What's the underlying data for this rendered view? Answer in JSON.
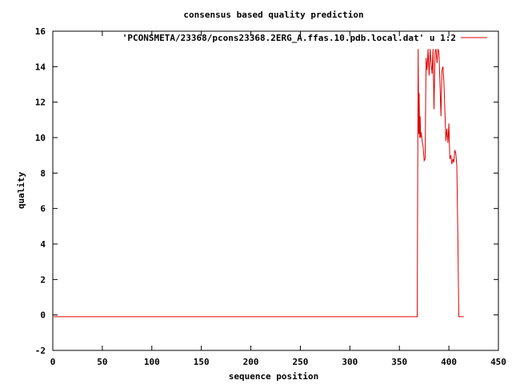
{
  "chart_data": {
    "type": "line",
    "title": "consensus based quality prediction",
    "xlabel": "sequence position",
    "ylabel": "quality",
    "xlim": [
      0,
      450
    ],
    "ylim": [
      -2,
      16
    ],
    "x_ticks": [
      0,
      50,
      100,
      150,
      200,
      250,
      300,
      350,
      400,
      450
    ],
    "y_ticks": [
      -2,
      0,
      2,
      4,
      6,
      8,
      10,
      12,
      14,
      16
    ],
    "legend_position": "top-right",
    "grid": false,
    "series": [
      {
        "name": "'PCONSMETA/23368/pcons23368.2ERG_A.ffas.10.pdb.local.dat' u 1:2",
        "color": "#e00000",
        "x": [
          1,
          368,
          368.5,
          369,
          369.5,
          370,
          370.5,
          371,
          371.5,
          372,
          373,
          374,
          375,
          376,
          377,
          378,
          379,
          380,
          381,
          382,
          383,
          384,
          385,
          386,
          387,
          388,
          389,
          390,
          391,
          392,
          393,
          394,
          395,
          396,
          397,
          398,
          399,
          400,
          401,
          402,
          403,
          404,
          405,
          406,
          407,
          408,
          409,
          410,
          411,
          411.5,
          412,
          412.5,
          413,
          414,
          415
        ],
        "y": [
          -0.1,
          -0.1,
          7.5,
          15.0,
          10.2,
          12.5,
          10.0,
          11.2,
          10.0,
          10.3,
          9.8,
          9.5,
          8.7,
          8.8,
          14.5,
          13.8,
          15.0,
          13.5,
          15.0,
          14.2,
          13.6,
          15.0,
          11.6,
          14.8,
          15.0,
          14.2,
          15.0,
          14.8,
          13.0,
          11.2,
          13.8,
          14.0,
          13.1,
          11.4,
          9.8,
          10.5,
          9.7,
          10.8,
          8.8,
          9.0,
          8.5,
          8.8,
          8.6,
          9.3,
          9.1,
          8.4,
          4.5,
          -0.1,
          -0.1,
          -0.1,
          -0.1,
          -0.1,
          -0.1,
          -0.1,
          -0.1
        ]
      }
    ]
  }
}
